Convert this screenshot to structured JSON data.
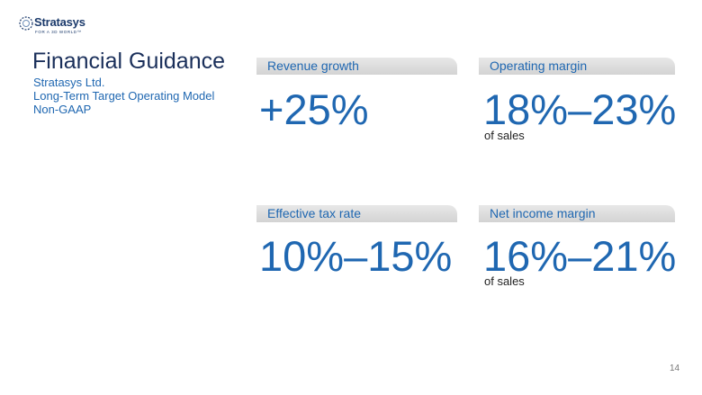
{
  "logo": {
    "name": "Stratasys",
    "tagline": "FOR A 3D WORLD™",
    "icon": "stratasys-logo-icon"
  },
  "header": {
    "title": "Financial Guidance",
    "subtitle_lines": [
      "Stratasys Ltd.",
      "Long-Term Target Operating Model",
      "Non-GAAP"
    ]
  },
  "metrics": [
    {
      "label": "Revenue growth",
      "value": "+25%",
      "note": ""
    },
    {
      "label": "Operating margin",
      "value": "18%–23%",
      "note": "of sales"
    },
    {
      "label": "Effective tax rate",
      "value": "10%–15%",
      "note": ""
    },
    {
      "label": "Net income margin",
      "value": "16%–21%",
      "note": "of sales"
    }
  ],
  "footer": {
    "page_number": "14"
  },
  "colors": {
    "accent": "#1f67b1",
    "title": "#1a2f5a",
    "header_bg": "#dcdcdc"
  }
}
